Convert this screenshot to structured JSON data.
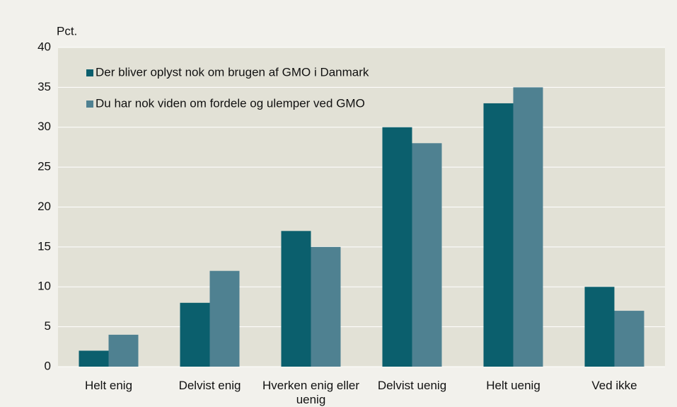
{
  "chart_data": {
    "type": "bar",
    "y_label": "Pct.",
    "categories": [
      "Helt enig",
      "Delvist enig",
      "Hverken enig eller uenig",
      "Delvist uenig",
      "Helt uenig",
      "Ved ikke"
    ],
    "series": [
      {
        "name": "Der bliver oplyst nok om brugen af GMO i Danmark",
        "color": "#0b5f6d",
        "values": [
          2,
          8,
          17,
          30,
          33,
          10
        ]
      },
      {
        "name": "Du har nok viden om fordele og ulemper ved GMO",
        "color": "#4f8191",
        "values": [
          4,
          12,
          15,
          28,
          35,
          7
        ]
      }
    ],
    "ylim": [
      0,
      40
    ],
    "yticks": [
      0,
      5,
      10,
      15,
      20,
      25,
      30,
      35,
      40
    ],
    "grid": true,
    "legend": "upper left"
  }
}
